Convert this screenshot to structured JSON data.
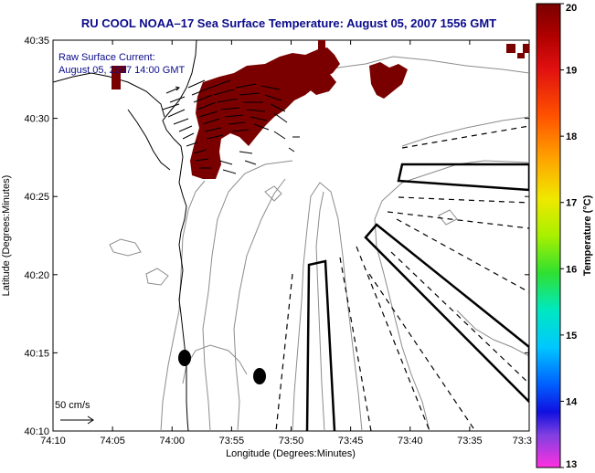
{
  "title": "RU COOL  NOAA–17  Sea Surface Temperature:  August 05, 2007 1556 GMT",
  "annotation": {
    "line1": "Raw Surface Current:",
    "line2": "August 05, 2007 14:00 GMT"
  },
  "scale_label": "50 cm/s",
  "axes": {
    "xlabel": "Longitude (Degrees:Minutes)",
    "ylabel": "Latitude (Degrees:Minutes)",
    "x_ticks": [
      "74:10",
      "74:05",
      "74:00",
      "73:55",
      "73:50",
      "73:45",
      "73:40",
      "73:35",
      "73:3"
    ],
    "y_ticks": [
      "40:35",
      "40:30",
      "40:25",
      "40:20",
      "40:15",
      "40:10"
    ]
  },
  "colorbar": {
    "label": "Temperature (°C)",
    "ticks": [
      "20",
      "19",
      "18",
      "17",
      "16",
      "15",
      "14",
      "13"
    ],
    "min": 13,
    "max": 20
  },
  "colors": {
    "sst_warm": "#7a0000",
    "title": "#0b0b8c"
  },
  "chart_data": {
    "type": "heatmap",
    "title": "RU COOL  NOAA–17  Sea Surface Temperature:  August 05, 2007 1556 GMT",
    "xlabel": "Longitude (Degrees:Minutes)",
    "ylabel": "Latitude (Degrees:Minutes)",
    "xlim": [
      -74.1667,
      -73.5333
    ],
    "ylim": [
      40.1667,
      40.5833
    ],
    "colorbar_range": [
      13,
      20
    ],
    "grid": false
  }
}
